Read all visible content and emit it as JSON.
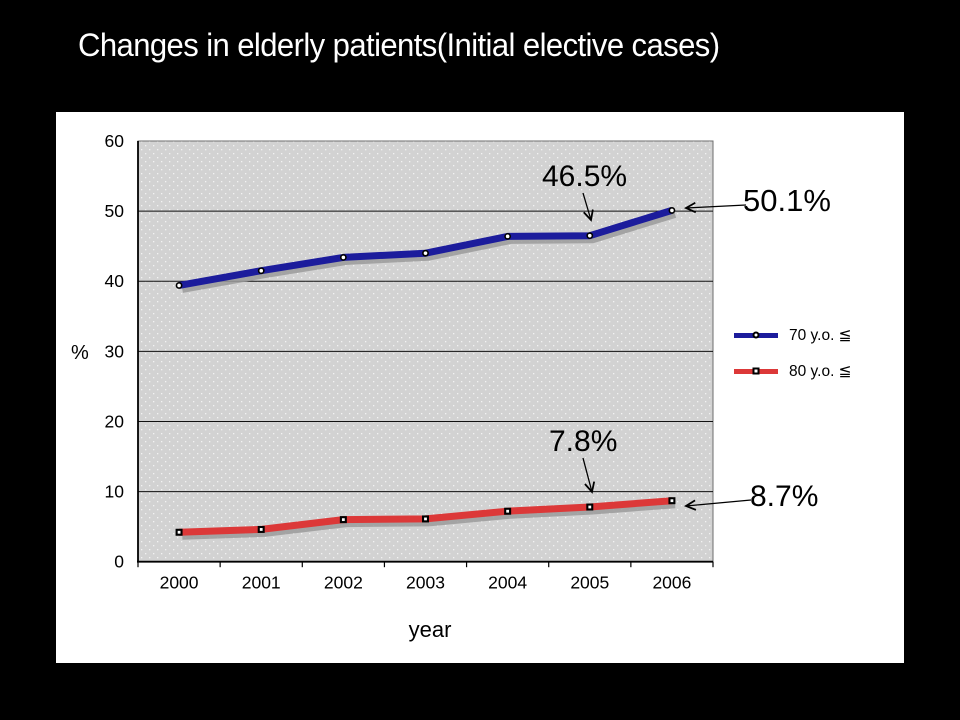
{
  "slide": {
    "title": "Changes in elderly patients(Initial elective cases)",
    "background_color": "#000000",
    "panel_color": "#ffffff"
  },
  "chart_data": {
    "type": "line",
    "categories": [
      "2000",
      "2001",
      "2002",
      "2003",
      "2004",
      "2005",
      "2006"
    ],
    "series": [
      {
        "name": "70 y.o. ≦",
        "color": "#1c1c9c",
        "marker": "circle",
        "values": [
          39.4,
          41.5,
          43.4,
          44.0,
          46.4,
          46.5,
          50.1
        ]
      },
      {
        "name": "80 y.o. ≦",
        "color": "#dc3838",
        "marker": "square",
        "values": [
          4.2,
          4.6,
          6.0,
          6.1,
          7.2,
          7.8,
          8.7
        ]
      }
    ],
    "xlabel": "year",
    "ylabel": "%",
    "ylim": [
      0,
      60
    ],
    "yticks": [
      0,
      10,
      20,
      30,
      40,
      50,
      60
    ],
    "grid": true,
    "plot_background": "#d2d2d2",
    "legend_position": "right",
    "annotations": [
      {
        "text": "46.5%",
        "series_index": 0,
        "category_index": 5
      },
      {
        "text": "50.1%",
        "series_index": 0,
        "category_index": 6
      },
      {
        "text": "7.8%",
        "series_index": 1,
        "category_index": 5
      },
      {
        "text": "8.7%",
        "series_index": 1,
        "category_index": 6
      }
    ]
  }
}
